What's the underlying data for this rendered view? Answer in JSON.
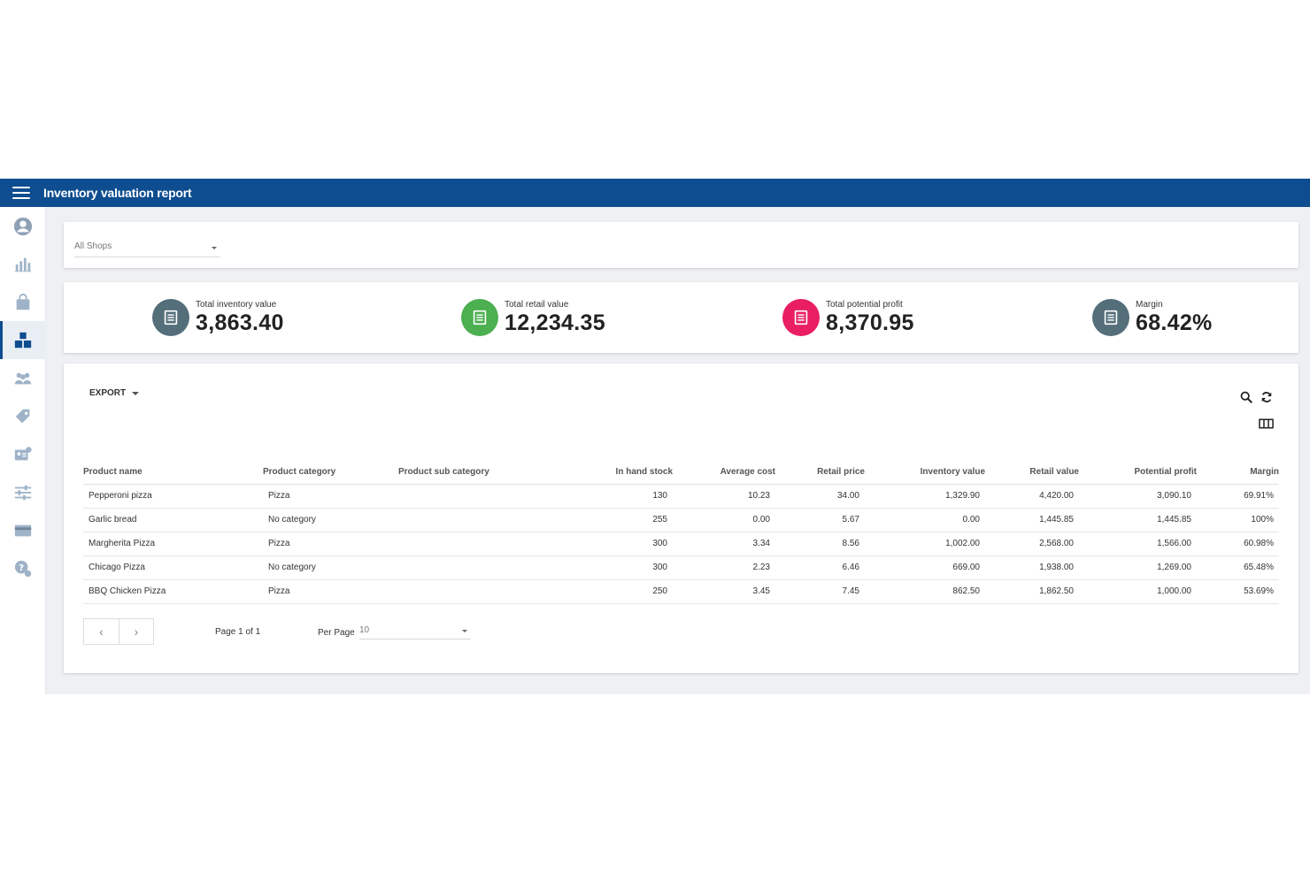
{
  "header": {
    "title": "Inventory valuation report"
  },
  "sidebar": {
    "icons": [
      "account-circle-icon",
      "bar-chart-icon",
      "shopping-bag-icon",
      "inventory-boxes-icon",
      "users-icon",
      "tag-icon",
      "id-card-icon",
      "sliders-icon",
      "credit-card-icon",
      "help-icon"
    ],
    "active_index": 3
  },
  "filter": {
    "shop_value": "All Shops"
  },
  "kpis": [
    {
      "label": "Total inventory value",
      "value": "3,863.40",
      "color": "#546e7a"
    },
    {
      "label": "Total retail value",
      "value": "12,234.35",
      "color": "#4caf50"
    },
    {
      "label": "Total potential profit",
      "value": "8,370.95",
      "color": "#e91e63"
    },
    {
      "label": "Margin",
      "value": "68.42%",
      "color": "#546e7a"
    }
  ],
  "toolbar": {
    "export_label": "EXPORT"
  },
  "table": {
    "columns": [
      "Product name",
      "Product category",
      "Product sub category",
      "In hand stock",
      "Average cost",
      "Retail price",
      "Inventory value",
      "Retail value",
      "Potential profit",
      "Margin"
    ],
    "rows": [
      [
        "Pepperoni pizza",
        "Pizza",
        "",
        "130",
        "10.23",
        "34.00",
        "1,329.90",
        "4,420.00",
        "3,090.10",
        "69.91%"
      ],
      [
        "Garlic bread",
        "No category",
        "",
        "255",
        "0.00",
        "5.67",
        "0.00",
        "1,445.85",
        "1,445.85",
        "100%"
      ],
      [
        "Margherita Pizza",
        "Pizza",
        "",
        "300",
        "3.34",
        "8.56",
        "1,002.00",
        "2,568.00",
        "1,566.00",
        "60.98%"
      ],
      [
        "Chicago Pizza",
        "No category",
        "",
        "300",
        "2.23",
        "6.46",
        "669.00",
        "1,938.00",
        "1,269.00",
        "65.48%"
      ],
      [
        "BBQ Chicken Pizza",
        "Pizza",
        "",
        "250",
        "3.45",
        "7.45",
        "862.50",
        "1,862.50",
        "1,000.00",
        "53.69%"
      ]
    ]
  },
  "pagination": {
    "prev": "‹",
    "next": "›",
    "page_info": "Page 1 of 1",
    "per_page_label": "Per Page",
    "per_page_value": "10"
  }
}
